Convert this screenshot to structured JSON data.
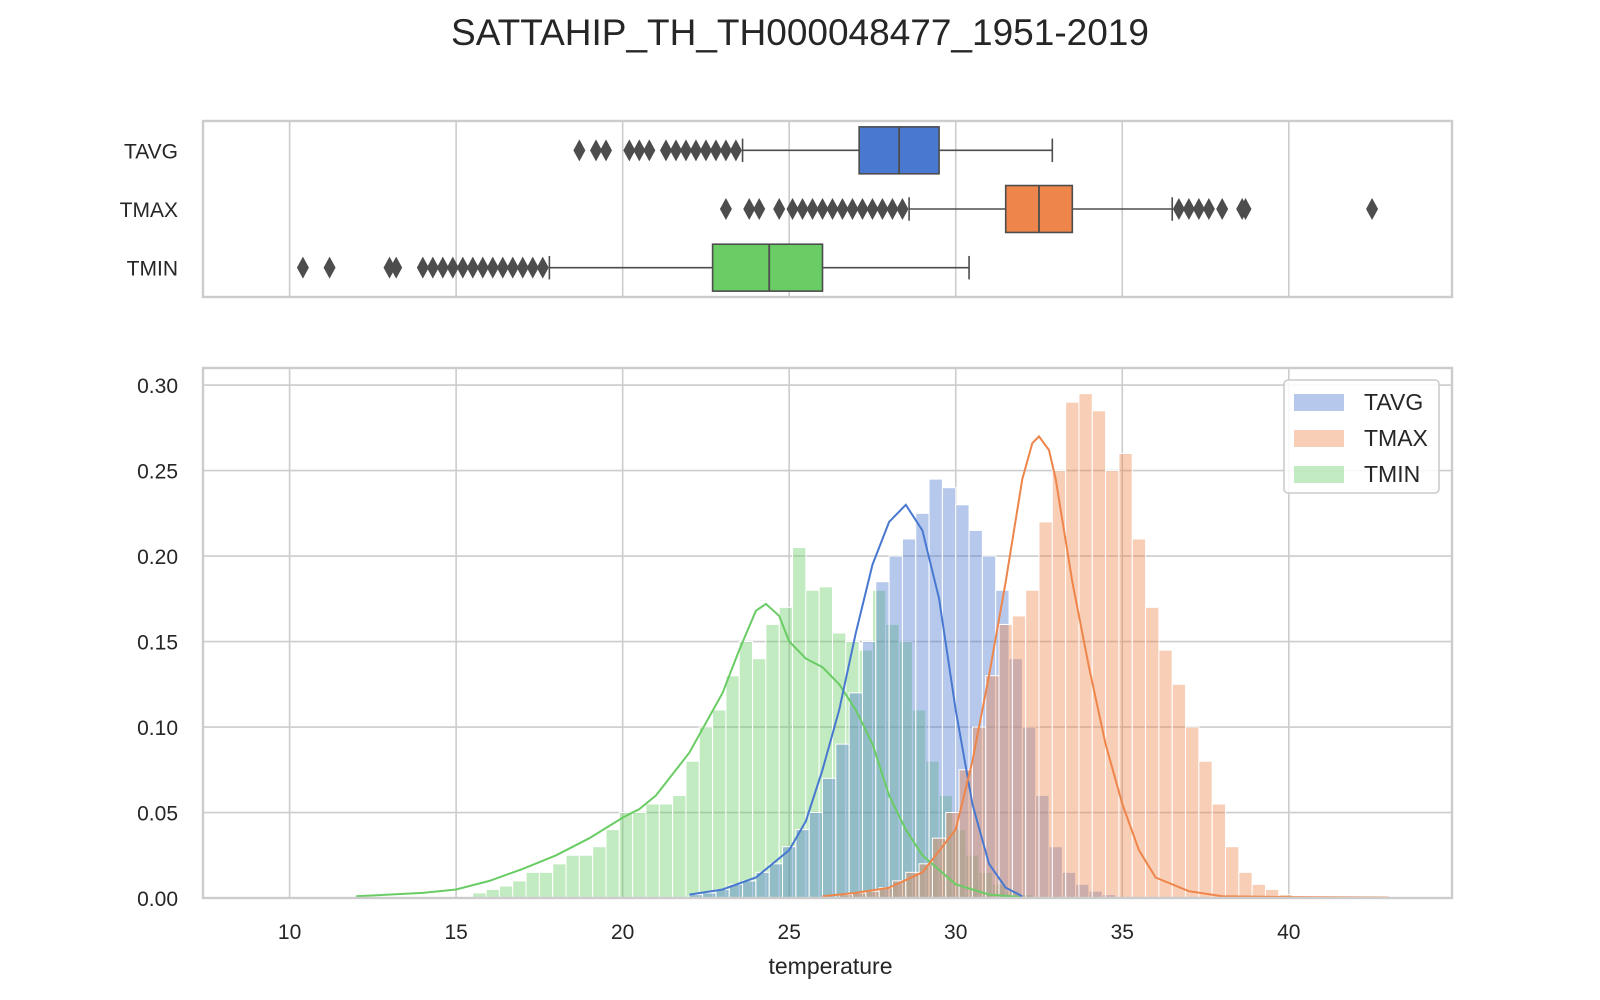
{
  "title": "SATTAHIP_TH_TH000048477_1951-2019",
  "colors": {
    "TAVG": "#4878d0",
    "TMAX": "#ee854a",
    "TMIN": "#6acc64",
    "outlier": "#4d4d4d",
    "grid": "#cccccc",
    "frame": "#cccccc"
  },
  "chart_data": [
    {
      "type": "box",
      "name": "boxplot",
      "xlim": [
        7.4,
        44.9
      ],
      "x_ticks": [
        10,
        15,
        20,
        25,
        30,
        35,
        40
      ],
      "categories": [
        "TAVG",
        "TMAX",
        "TMIN"
      ],
      "series": [
        {
          "name": "TAVG",
          "whisker_low": 23.6,
          "q1": 27.1,
          "median": 28.3,
          "q3": 29.5,
          "whisker_high": 32.9,
          "outliers": [
            18.7,
            19.2,
            19.5,
            20.2,
            20.5,
            20.8,
            21.3,
            21.6,
            21.9,
            22.2,
            22.5,
            22.8,
            23.1,
            23.4
          ]
        },
        {
          "name": "TMAX",
          "whisker_low": 28.6,
          "q1": 31.5,
          "median": 32.5,
          "q3": 33.5,
          "whisker_high": 36.5,
          "outliers": [
            23.1,
            23.8,
            24.1,
            24.7,
            25.1,
            25.4,
            25.7,
            26.0,
            26.3,
            26.6,
            26.9,
            27.2,
            27.5,
            27.8,
            28.1,
            28.4,
            36.7,
            37.0,
            37.3,
            37.6,
            38.0,
            38.6,
            38.7,
            42.5
          ]
        },
        {
          "name": "TMIN",
          "whisker_low": 17.8,
          "q1": 22.7,
          "median": 24.4,
          "q3": 26.0,
          "whisker_high": 30.4,
          "outliers": [
            10.4,
            11.2,
            13.0,
            13.2,
            14.0,
            14.3,
            14.6,
            14.9,
            15.2,
            15.5,
            15.8,
            16.1,
            16.4,
            16.7,
            17.0,
            17.3,
            17.6
          ]
        }
      ]
    },
    {
      "type": "histogram",
      "name": "distribution",
      "xlabel": "temperature",
      "ylabel": "",
      "xlim": [
        7.4,
        44.9
      ],
      "ylim": [
        0,
        0.31
      ],
      "x_ticks": [
        10,
        15,
        20,
        25,
        30,
        35,
        40
      ],
      "y_ticks": [
        0.0,
        0.05,
        0.1,
        0.15,
        0.2,
        0.25,
        0.3
      ],
      "y_tick_labels": [
        "0.00",
        "0.05",
        "0.10",
        "0.15",
        "0.20",
        "0.25",
        "0.30"
      ],
      "legend": {
        "position": "top-right",
        "entries": [
          "TAVG",
          "TMAX",
          "TMIN"
        ]
      },
      "grid": true,
      "series": [
        {
          "name": "TMIN",
          "bin_start": 15.5,
          "bin_width": 0.4,
          "values": [
            0.003,
            0.005,
            0.007,
            0.01,
            0.015,
            0.015,
            0.02,
            0.025,
            0.025,
            0.03,
            0.04,
            0.05,
            0.05,
            0.055,
            0.055,
            0.06,
            0.08,
            0.1,
            0.11,
            0.13,
            0.15,
            0.14,
            0.16,
            0.17,
            0.205,
            0.18,
            0.182,
            0.155,
            0.15,
            0.145,
            0.18,
            0.16,
            0.15,
            0.11,
            0.08,
            0.06,
            0.04,
            0.025,
            0.015,
            0.008,
            0.004,
            0.002
          ],
          "kde_x": [
            12,
            14,
            15,
            16,
            17,
            18,
            19,
            20,
            20.5,
            21,
            22,
            23,
            23.5,
            24,
            24.3,
            24.7,
            25,
            25.5,
            26,
            26.5,
            27,
            27.5,
            28,
            28.5,
            29,
            30,
            31,
            32
          ],
          "kde_y": [
            0.001,
            0.003,
            0.005,
            0.01,
            0.017,
            0.025,
            0.035,
            0.047,
            0.052,
            0.06,
            0.085,
            0.12,
            0.145,
            0.168,
            0.172,
            0.165,
            0.15,
            0.14,
            0.135,
            0.125,
            0.11,
            0.09,
            0.06,
            0.04,
            0.025,
            0.008,
            0.002,
            0.0005
          ]
        },
        {
          "name": "TAVG",
          "bin_start": 22.0,
          "bin_width": 0.4,
          "values": [
            0.002,
            0.003,
            0.005,
            0.008,
            0.01,
            0.015,
            0.02,
            0.03,
            0.04,
            0.05,
            0.07,
            0.09,
            0.12,
            0.15,
            0.185,
            0.2,
            0.21,
            0.225,
            0.245,
            0.24,
            0.23,
            0.215,
            0.2,
            0.18,
            0.14,
            0.1,
            0.06,
            0.03,
            0.015,
            0.008,
            0.004,
            0.002
          ],
          "kde_x": [
            22,
            23,
            24,
            25,
            25.5,
            26,
            26.5,
            27,
            27.5,
            28,
            28.5,
            29,
            29.5,
            30,
            30.5,
            31,
            31.5,
            32
          ],
          "kde_y": [
            0.002,
            0.005,
            0.012,
            0.028,
            0.045,
            0.075,
            0.11,
            0.155,
            0.195,
            0.22,
            0.23,
            0.215,
            0.175,
            0.11,
            0.055,
            0.02,
            0.006,
            0.001
          ]
        },
        {
          "name": "TMAX",
          "bin_start": 26.5,
          "bin_width": 0.4,
          "values": [
            0.002,
            0.003,
            0.004,
            0.006,
            0.01,
            0.015,
            0.02,
            0.035,
            0.05,
            0.075,
            0.1,
            0.13,
            0.16,
            0.165,
            0.18,
            0.22,
            0.25,
            0.29,
            0.295,
            0.285,
            0.25,
            0.26,
            0.21,
            0.17,
            0.145,
            0.125,
            0.1,
            0.08,
            0.055,
            0.03,
            0.015,
            0.008,
            0.005,
            0.002
          ],
          "kde_x": [
            26,
            27,
            28,
            29,
            30,
            30.5,
            31,
            31.5,
            32,
            32.3,
            32.5,
            32.8,
            33,
            33.5,
            34,
            34.5,
            35,
            35.5,
            36,
            37,
            38,
            40,
            43
          ],
          "kde_y": [
            0.001,
            0.003,
            0.006,
            0.015,
            0.04,
            0.08,
            0.13,
            0.185,
            0.245,
            0.266,
            0.27,
            0.262,
            0.245,
            0.185,
            0.135,
            0.09,
            0.055,
            0.028,
            0.012,
            0.004,
            0.001,
            0.0005,
            0.0003
          ]
        }
      ]
    }
  ]
}
